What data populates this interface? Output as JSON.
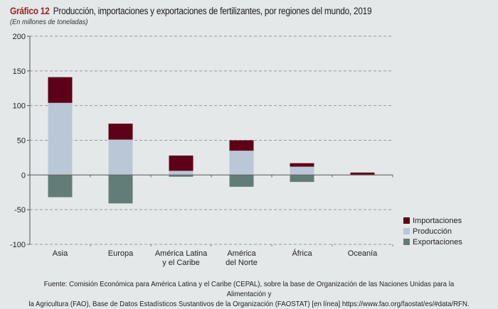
{
  "header": {
    "number": "Gráfico 12",
    "title": "Producción, importaciones y exportaciones de fertilizantes, por regiones del mundo, 2019",
    "subtitle": "(En millones de toneladas)"
  },
  "footer": {
    "source_line1": "Fuente: Comisión Económica para América Latina y el Caribe (CEPAL), sobre la base de Organización de las Naciones Unidas para la Alimentación y",
    "source_line2": "la Agricultura (FAO), Base de Datos Estadísticos Sustantivos de la Organización (FAOSTAT) [en línea] https://www.fao.org/faostat/es/#data/RFN."
  },
  "chart_data": {
    "type": "bar",
    "stacked": true,
    "title": "Producción, importaciones y exportaciones de fertilizantes, por regiones del mundo, 2019",
    "subtitle": "(En millones de toneladas)",
    "xlabel": "",
    "ylabel": "",
    "ylim": [
      -100,
      200
    ],
    "yticks": [
      200,
      150,
      100,
      50,
      0,
      -50,
      -100
    ],
    "grid": true,
    "legend_position": "bottom-right",
    "categories": [
      [
        "Asia"
      ],
      [
        "Europa"
      ],
      [
        "América Latina",
        "y el Caribe"
      ],
      [
        "América",
        "del Norte"
      ],
      [
        "África"
      ],
      [
        "Oceanía"
      ]
    ],
    "series": [
      {
        "name": "Importaciones",
        "color": "#5e0018",
        "values": [
          37,
          23,
          22,
          15,
          5,
          3
        ]
      },
      {
        "name": "Producción",
        "color": "#bac7d6",
        "values": [
          104,
          51,
          6,
          35,
          12,
          0.5
        ]
      },
      {
        "name": "Exportaciones",
        "color": "#627d78",
        "values": [
          -32,
          -41,
          -2.5,
          -17,
          -10,
          -0.5
        ]
      }
    ]
  }
}
